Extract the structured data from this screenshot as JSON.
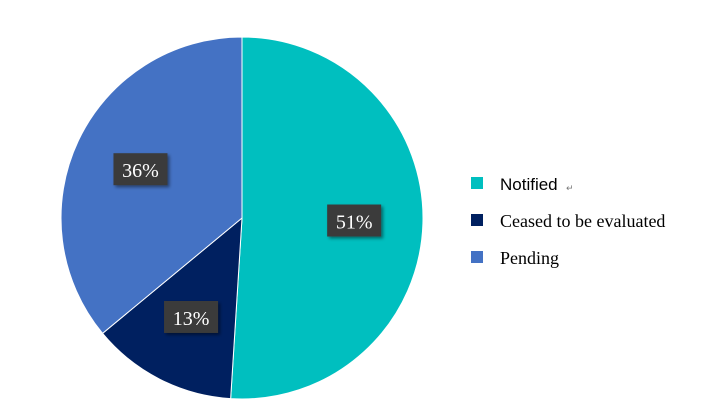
{
  "chart_data": {
    "type": "pie",
    "title": "",
    "slices": [
      {
        "label": "Notified",
        "value": 51,
        "display": "51%",
        "color": "#00BFBF"
      },
      {
        "label": "Ceased to be evaluated",
        "value": 13,
        "display": "13%",
        "color": "#002060"
      },
      {
        "label": "Pending",
        "value": 36,
        "display": "36%",
        "color": "#4472C4"
      }
    ],
    "start_angle_deg": 0,
    "direction": "clockwise",
    "legend_position": "right",
    "data_labels": "percent"
  }
}
